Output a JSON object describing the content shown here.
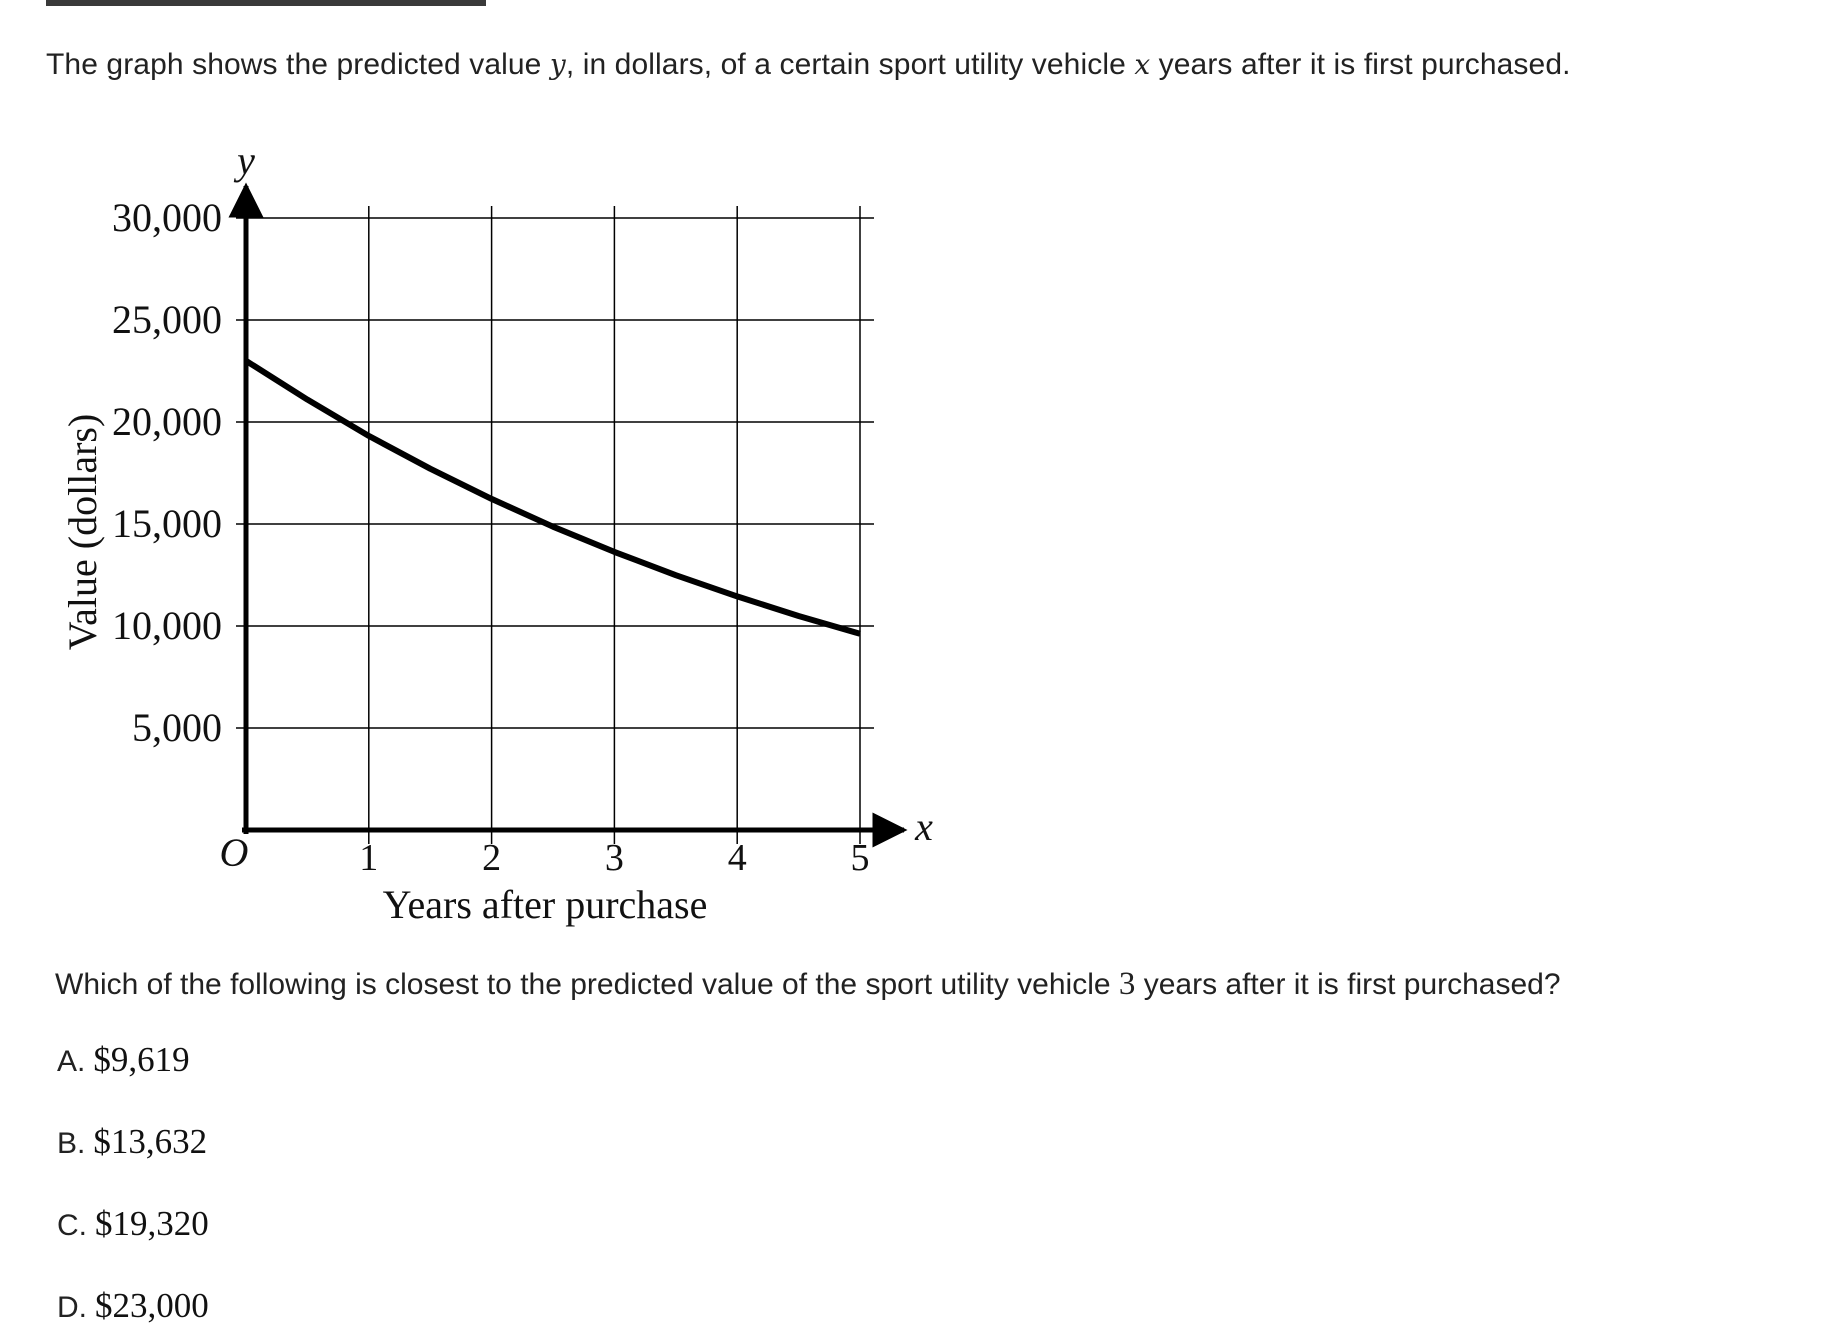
{
  "question": {
    "intro_a": "The graph shows the predicted value ",
    "intro_var_y": "y",
    "intro_b": ", in dollars, of a certain sport utility vehicle ",
    "intro_var_x": "x",
    "intro_c": " years after it is first purchased.",
    "prompt_a": "Which of the following is closest to the predicted value of the sport utility vehicle ",
    "prompt_num": "3",
    "prompt_b": " years after it is first purchased?"
  },
  "choices": [
    {
      "letter": "A.",
      "value": "$9,619"
    },
    {
      "letter": "B.",
      "value": "$13,632"
    },
    {
      "letter": "C.",
      "value": "$19,320"
    },
    {
      "letter": "D.",
      "value": "$23,000"
    }
  ],
  "chart_data": {
    "type": "line",
    "title": "",
    "xlabel": "Years after purchase",
    "ylabel": "Value (dollars)",
    "x_axis_var": "x",
    "y_axis_var": "y",
    "origin_label": "O",
    "xlim": [
      0,
      5
    ],
    "ylim": [
      0,
      30000
    ],
    "x_ticks": [
      1,
      2,
      3,
      4,
      5
    ],
    "x_tick_labels": [
      "1",
      "2",
      "3",
      "4",
      "5"
    ],
    "y_ticks": [
      5000,
      10000,
      15000,
      20000,
      25000,
      30000
    ],
    "y_tick_labels": [
      "5,000",
      "10,000",
      "15,000",
      "20,000",
      "25,000",
      "30,000"
    ],
    "grid": true,
    "series": [
      {
        "x": [
          0,
          0.5,
          1,
          1.5,
          2,
          2.5,
          3,
          3.5,
          4,
          4.5,
          5
        ],
        "y": [
          23000,
          21100,
          19320,
          17710,
          16230,
          14870,
          13630,
          12490,
          11450,
          10490,
          9620
        ],
        "color": "#000000"
      }
    ]
  }
}
